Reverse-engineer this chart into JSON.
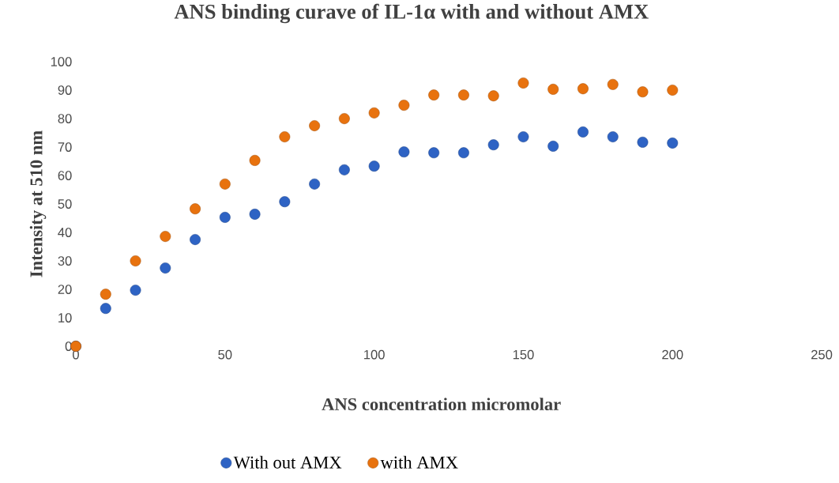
{
  "chart_data": {
    "type": "scatter",
    "title": "ANS binding curave of IL-1α with and without AMX",
    "xlabel": "ANS concentration micromolar",
    "ylabel": "Intensity at 510 nm",
    "x": [
      0,
      10,
      20,
      30,
      40,
      50,
      60,
      70,
      80,
      90,
      100,
      110,
      120,
      130,
      140,
      150,
      160,
      170,
      180,
      190,
      200
    ],
    "series": [
      {
        "name": "With out AMX",
        "color": "#2e63c4",
        "values": [
          0,
          13.3,
          19.7,
          27.5,
          37.5,
          45.3,
          46.4,
          50.8,
          57,
          62,
          63.3,
          68.3,
          68,
          68,
          70.8,
          73.6,
          70.3,
          75.3,
          73.6,
          71.7,
          71.4
        ]
      },
      {
        "name": "with AMX",
        "color": "#e8720e",
        "values": [
          0,
          18.3,
          30,
          38.6,
          48.3,
          57,
          65.3,
          73.6,
          77.5,
          80,
          82,
          84.7,
          88.3,
          88.3,
          88,
          92.5,
          90.3,
          90.5,
          92,
          89.4,
          90
        ]
      }
    ],
    "xlim": [
      0,
      250
    ],
    "ylim": [
      0,
      100
    ],
    "xticks": [
      0,
      50,
      100,
      150,
      200,
      250
    ],
    "yticks": [
      0,
      10,
      20,
      30,
      40,
      50,
      60,
      70,
      80,
      90,
      100
    ],
    "grid": false,
    "legend": "bottom",
    "marker": "circle"
  }
}
